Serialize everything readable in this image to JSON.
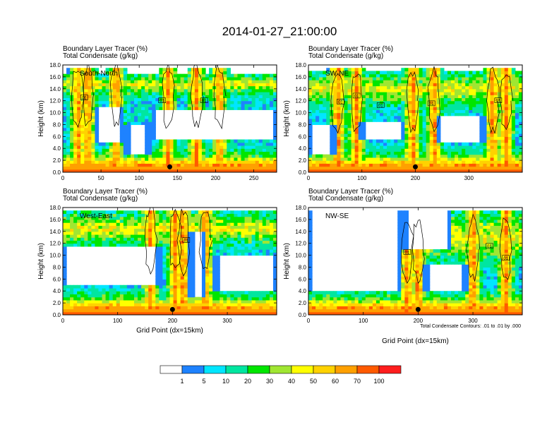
{
  "chart_data": {
    "title": "2014-01-27_21:00:00",
    "type": "heatmap",
    "subtitle_lines": [
      "Boundary Layer Tracer   (%)",
      "Total Condensate   (g/kg)"
    ],
    "colorbar": {
      "colors": [
        "#ffffff",
        "#1e82ff",
        "#00e6ff",
        "#00e6a0",
        "#00e600",
        "#a0e632",
        "#ffff00",
        "#ffd200",
        "#ffa000",
        "#ff5a00",
        "#ff1e1e"
      ],
      "levels": [
        "1",
        "5",
        "10",
        "20",
        "30",
        "40",
        "50",
        "60",
        "70",
        "100"
      ]
    },
    "contour_note": "Total Condensate Contours: .01 to .01 by .000",
    "contour_label": "01",
    "panels": [
      {
        "name": "South-North",
        "ylabel": "Height (km)",
        "xlabel": "",
        "xlim": [
          0,
          280
        ],
        "ylim": [
          0,
          18
        ],
        "xticks": [
          "0",
          "50",
          "100",
          "150",
          "200",
          "250"
        ],
        "xtick_values": [
          0,
          50,
          100,
          150,
          200,
          250
        ],
        "yticks": [
          "0.0",
          "2.0",
          "4.0",
          "6.0",
          "8.0",
          "10.0",
          "12.0",
          "14.0",
          "16.0",
          "18.0"
        ],
        "marker_x": 140,
        "column_x": [
          20,
          33,
          70,
          138,
          175,
          205
        ],
        "band_top": [
          14,
          15.5
        ],
        "clear_zones": [
          [
            115,
            280,
            5.5,
            10.5
          ],
          [
            40,
            80,
            5,
            11
          ],
          [
            80,
            115,
            3,
            8
          ]
        ],
        "contour_label_x": [
          28,
          130,
          185
        ],
        "contour_label_y": [
          12.5,
          12.0,
          12.0
        ]
      },
      {
        "name": "SW-NE",
        "ylabel": "Height (km)",
        "xlabel": "",
        "xlim": [
          0,
          400
        ],
        "ylim": [
          0,
          18
        ],
        "xticks": [
          "0",
          "100",
          "200",
          "300"
        ],
        "xtick_values": [
          0,
          100,
          200,
          300
        ],
        "yticks": [
          "0.0",
          "2.0",
          "4.0",
          "6.0",
          "8.0",
          "10.0",
          "12.0",
          "14.0",
          "16.0",
          "18.0"
        ],
        "marker_x": 200,
        "column_x": [
          55,
          90,
          195,
          235,
          345,
          370
        ],
        "band_top": [
          12,
          16
        ],
        "clear_zones": [
          [
            240,
            330,
            5,
            9.5
          ],
          [
            95,
            180,
            5.5,
            8.5
          ],
          [
            0,
            50,
            3,
            8
          ]
        ],
        "contour_label_x": [
          60,
          90,
          135,
          230,
          355
        ],
        "contour_label_y": [
          11.8,
          12.8,
          11.2,
          11.5,
          12.0
        ]
      },
      {
        "name": "West-East",
        "ylabel": "Height (km)",
        "xlabel": "Grid Point (dx=15km)",
        "xlim": [
          0,
          390
        ],
        "ylim": [
          0,
          18
        ],
        "xticks": [
          "0",
          "100",
          "200",
          "300"
        ],
        "xtick_values": [
          0,
          100,
          200,
          300
        ],
        "yticks": [
          "0.0",
          "2.0",
          "4.0",
          "6.0",
          "8.0",
          "10.0",
          "12.0",
          "14.0",
          "16.0",
          "18.0"
        ],
        "marker_x": 200,
        "column_x": [
          160,
          205,
          220,
          260
        ],
        "band_top": [
          12.5,
          16.5
        ],
        "clear_zones": [
          [
            0,
            180,
            5,
            11.5
          ],
          [
            275,
            390,
            4,
            10
          ],
          [
            230,
            260,
            3,
            14
          ]
        ],
        "contour_label_x": [
          225
        ],
        "contour_label_y": [
          12.5
        ]
      },
      {
        "name": "NW-SE",
        "ylabel": "Height (km)",
        "xlabel": "Grid Point (dx=15km)",
        "xlim": [
          0,
          390
        ],
        "ylim": [
          0,
          18
        ],
        "xticks": [
          "0",
          "100",
          "200",
          "300"
        ],
        "xtick_values": [
          0,
          100,
          200,
          300
        ],
        "yticks": [
          "0.0",
          "2.0",
          "4.0",
          "6.0",
          "8.0",
          "10.0",
          "12.0",
          "14.0",
          "16.0",
          "18.0"
        ],
        "marker_x": 200,
        "column_x": [
          180,
          200,
          300,
          360
        ],
        "band_top": [
          9,
          17
        ],
        "clear_zones": [
          [
            0,
            170,
            4,
            18
          ],
          [
            210,
            290,
            4,
            8.5
          ],
          [
            170,
            260,
            11,
            18
          ]
        ],
        "contour_label_x": [
          180,
          330,
          360
        ],
        "contour_label_y": [
          10.5,
          11.5,
          9.5
        ]
      }
    ]
  }
}
